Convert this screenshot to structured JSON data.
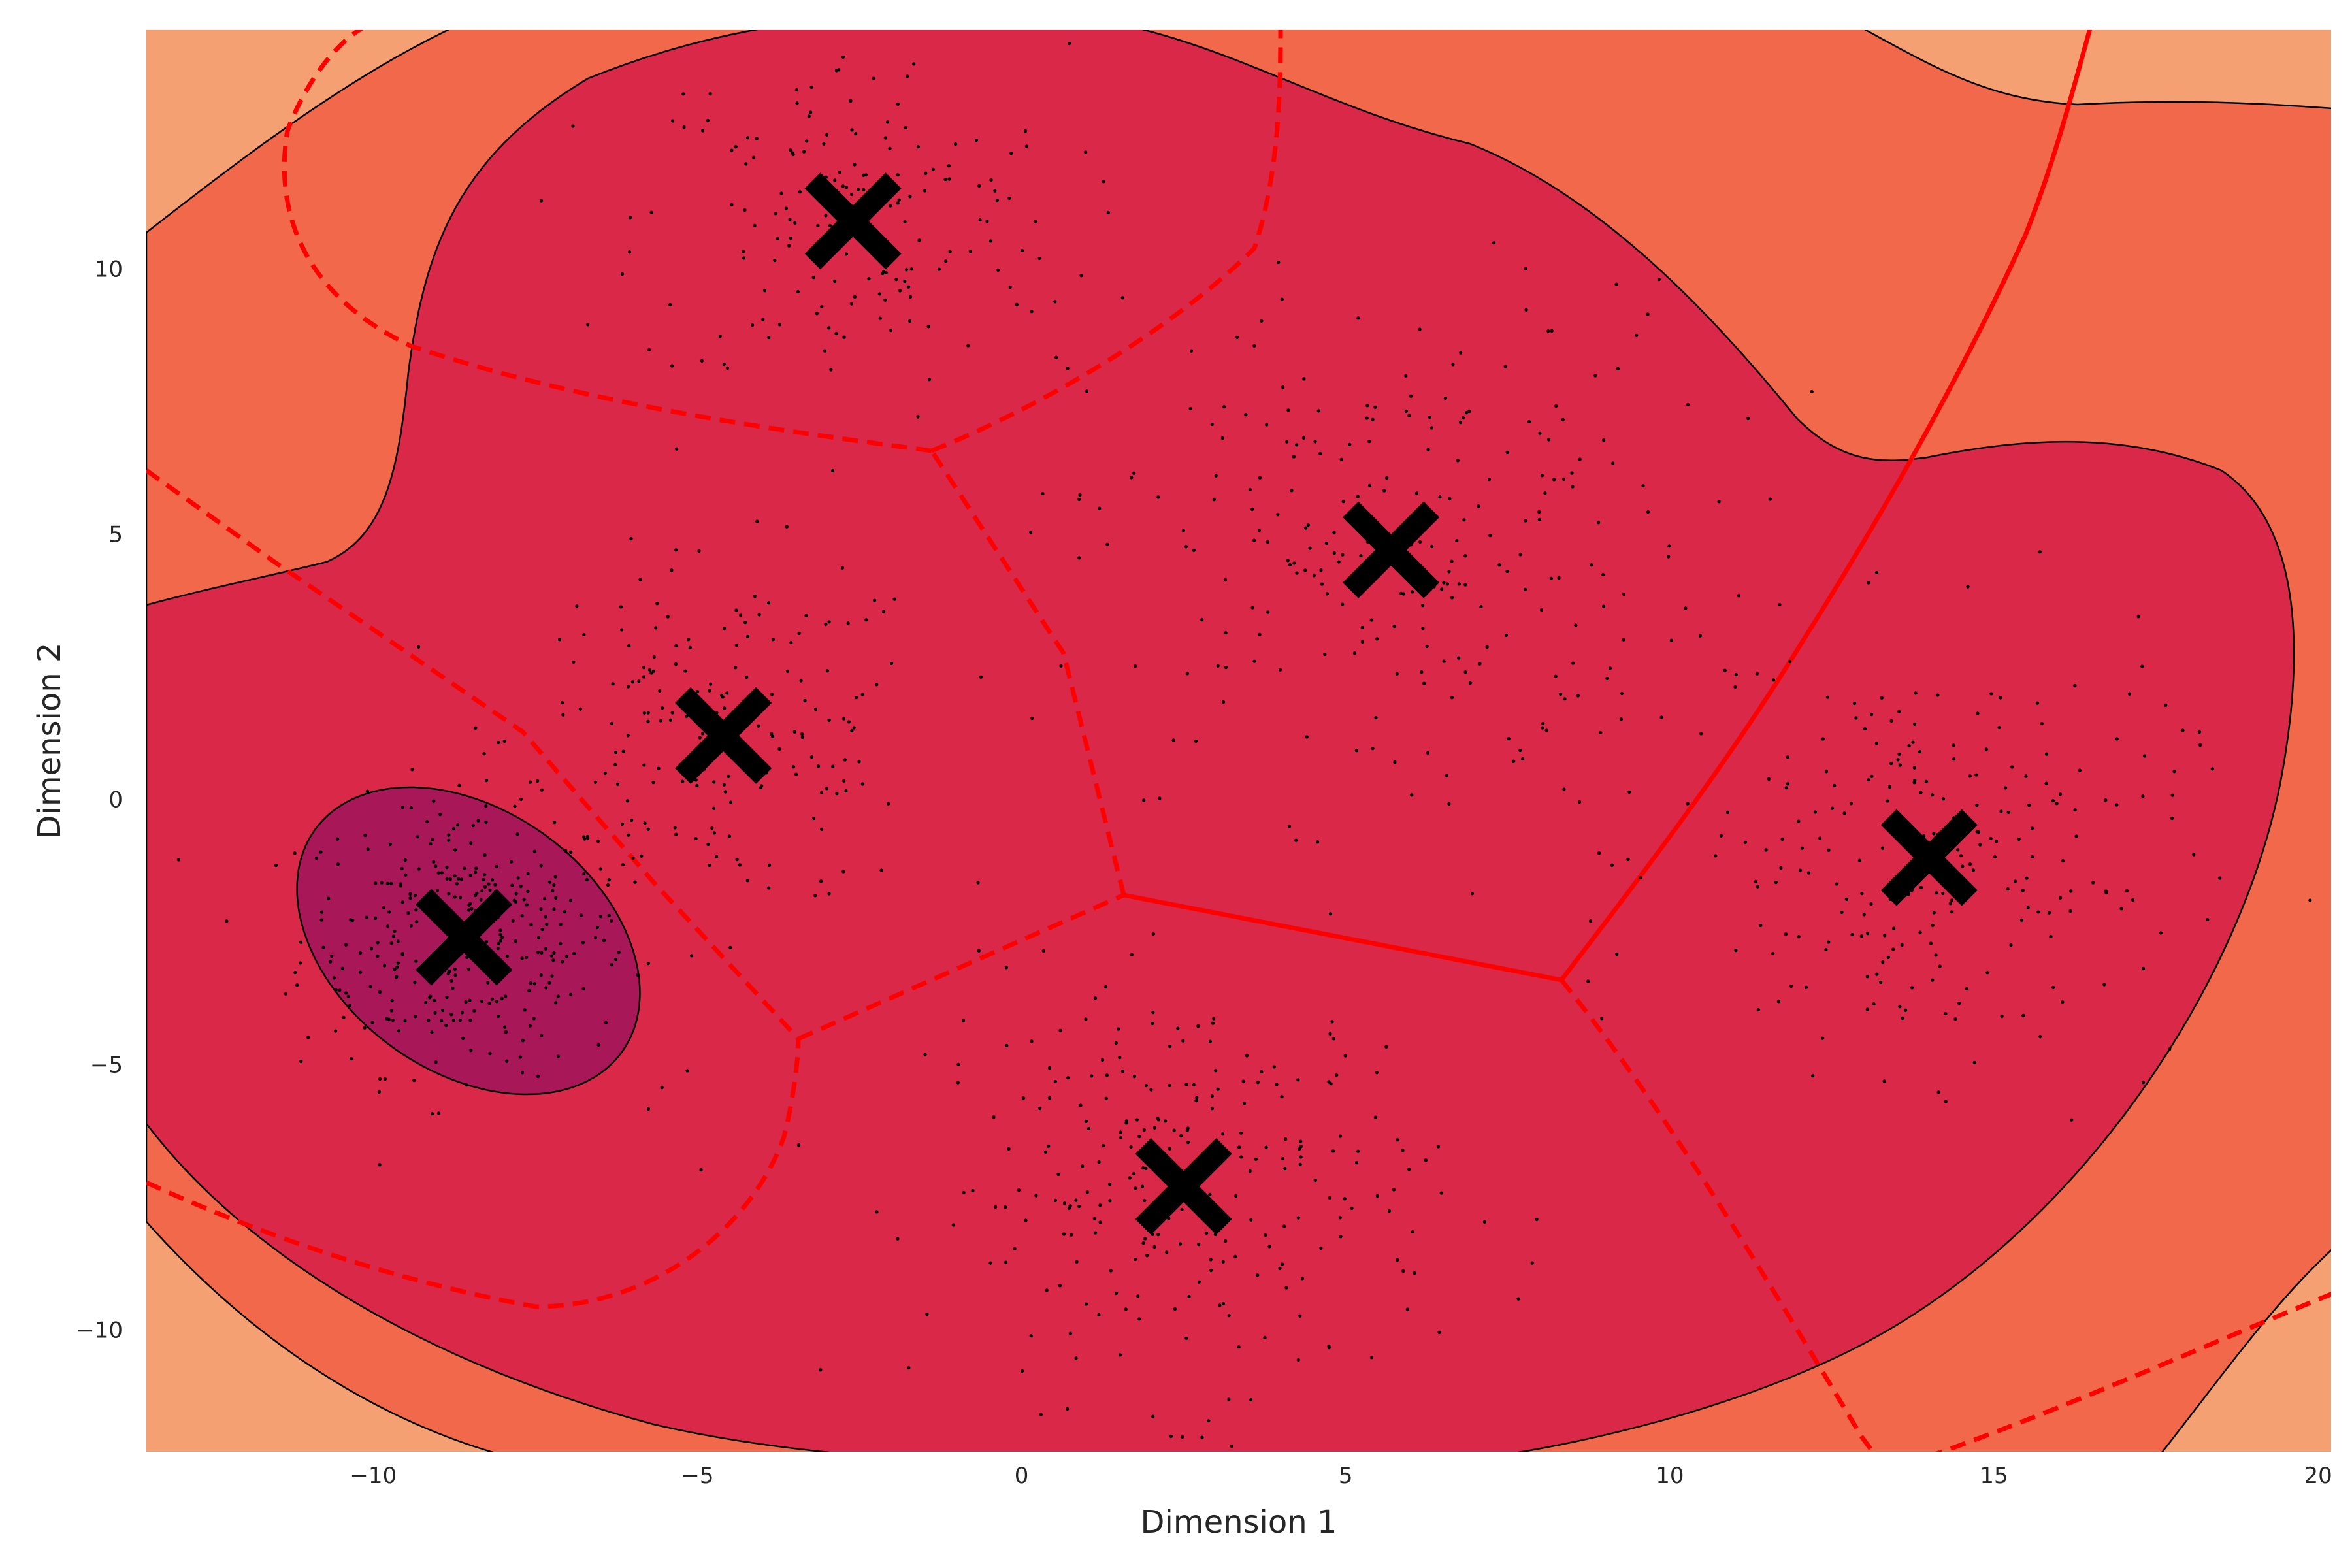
{
  "chart_data": {
    "type": "scatter",
    "title": "",
    "xlabel": "Dimension 1",
    "ylabel": "Dimension 2",
    "xlim": [
      -13.5,
      20.2
    ],
    "ylim": [
      -12.3,
      14.5
    ],
    "xticks": [
      -10,
      -5,
      0,
      5,
      10,
      15,
      20
    ],
    "yticks": [
      -10,
      -5,
      0,
      5,
      10
    ],
    "xtick_labels": [
      "−10",
      "−5",
      "0",
      "5",
      "10",
      "15",
      "20"
    ],
    "ytick_labels": [
      "−10",
      "−5",
      "0",
      "5",
      "10"
    ],
    "grid": false,
    "legend": "none",
    "background_regions": {
      "levels": [
        "light",
        "medium",
        "dark",
        "darkest"
      ],
      "colors": [
        "#f4a072",
        "#f1684a",
        "#da2848",
        "#a81858"
      ]
    },
    "decision_boundary": {
      "color": "#ff0000",
      "styles": [
        "solid",
        "dashed"
      ]
    },
    "centroids": {
      "marker": "x",
      "color": "#000000",
      "points": [
        {
          "x": -8.6,
          "y": -2.6
        },
        {
          "x": -4.6,
          "y": 1.2
        },
        {
          "x": -2.6,
          "y": 10.9
        },
        {
          "x": 5.7,
          "y": 4.7
        },
        {
          "x": 2.5,
          "y": -7.3
        },
        {
          "x": 14.0,
          "y": -1.1
        }
      ]
    },
    "scatter_points": {
      "color": "#000000",
      "approx_count": 1500,
      "clusters": [
        {
          "center_x": -8.6,
          "center_y": -2.6,
          "spread": 2.3,
          "approx_count": 340
        },
        {
          "center_x": -4.6,
          "center_y": 1.2,
          "spread": 3.0,
          "approx_count": 200
        },
        {
          "center_x": -2.6,
          "center_y": 10.9,
          "spread": 3.0,
          "approx_count": 180
        },
        {
          "center_x": 5.7,
          "center_y": 4.7,
          "spread": 4.5,
          "approx_count": 260
        },
        {
          "center_x": 2.5,
          "center_y": -7.3,
          "spread": 3.6,
          "approx_count": 270
        },
        {
          "center_x": 14.0,
          "center_y": -1.1,
          "spread": 3.6,
          "approx_count": 250
        }
      ]
    }
  }
}
